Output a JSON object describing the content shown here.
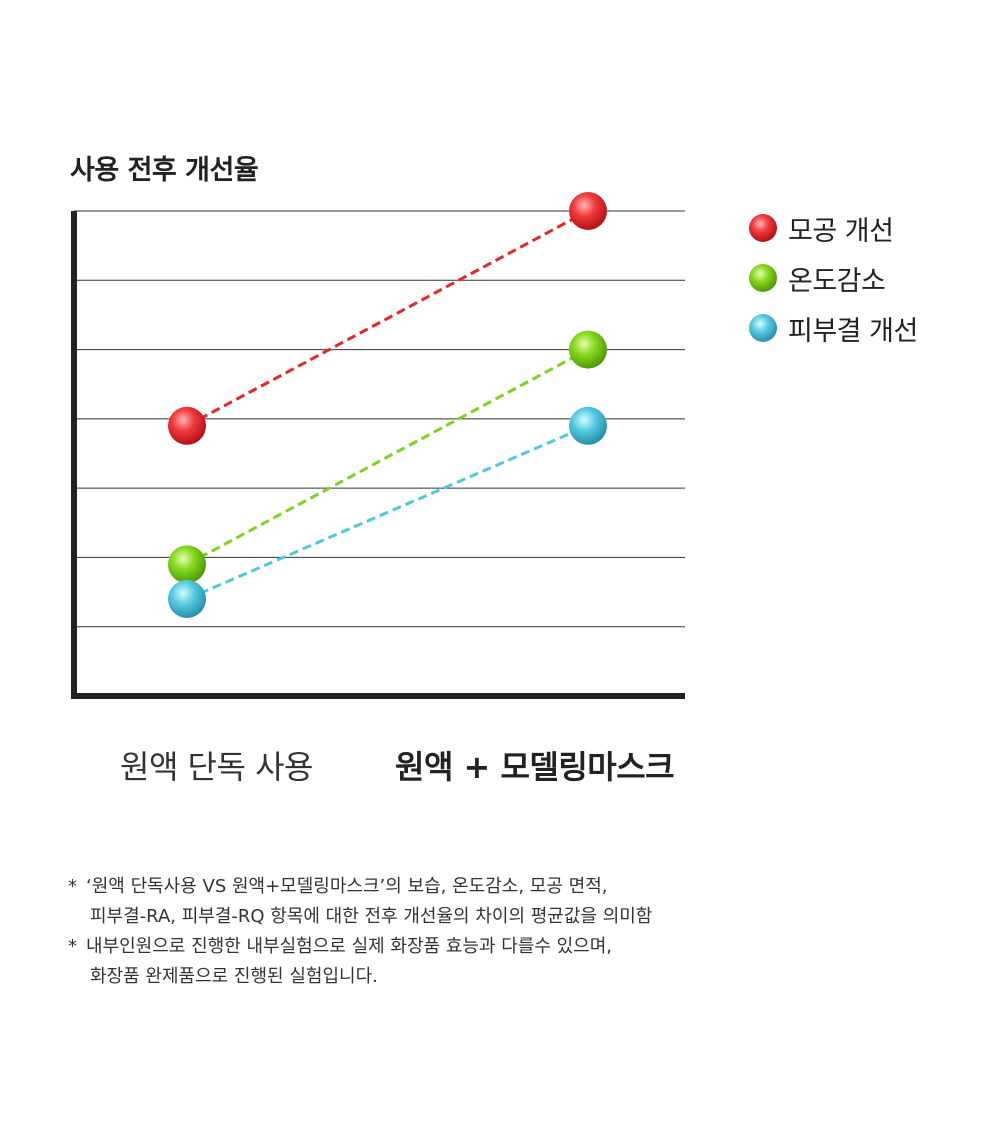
{
  "chart_data": {
    "type": "line",
    "title": "사용 전후 개선율",
    "categories": [
      "원액 단독 사용",
      "원액 + 모델링마스크"
    ],
    "ylim": [
      0,
      7
    ],
    "grid": true,
    "legend_position": "right",
    "series": [
      {
        "name": "모공 개선",
        "color": "#e8262a",
        "values": [
          3.9,
          7.0
        ]
      },
      {
        "name": "온도감소",
        "color": "#7ed321",
        "values": [
          1.9,
          5.0
        ]
      },
      {
        "name": "피부결 개선",
        "color": "#4ec8dc",
        "values": [
          1.4,
          3.9
        ]
      }
    ]
  },
  "notes": [
    {
      "star": "*",
      "text": "‘원액 단독사용 VS 원액+모델링마스크’의 보습, 온도감소, 모공 면적,"
    },
    {
      "star": "",
      "text": "피부결-RA, 피부결-RQ 항목에 대한 전후 개선율의 차이의 평균값을 의미함"
    },
    {
      "star": "*",
      "text": "내부인원으로 진행한 내부실험으로 실제 화장품 효능과 다를수 있으며,"
    },
    {
      "star": "",
      "text": "화장품 완제품으로 진행된 실험입니다."
    }
  ]
}
